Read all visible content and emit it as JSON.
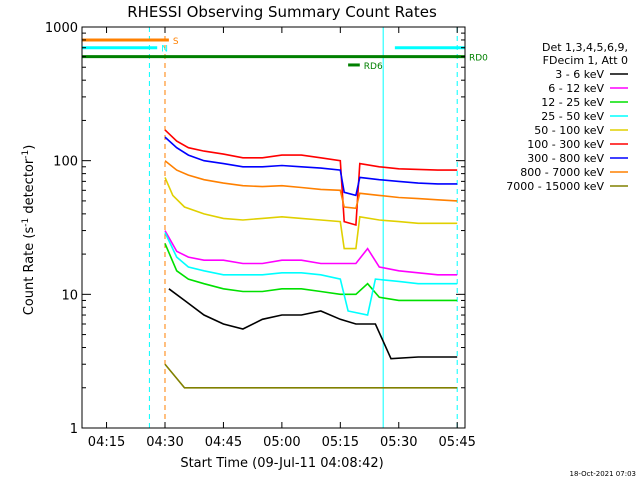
{
  "chart_data": {
    "type": "line",
    "title": "RHESSI Observing Summary Count Rates",
    "xlabel": "Start Time (09-Jul-11 04:08:42)",
    "ylabel_main": "Count Rate (s",
    "ylabel_sup1": "-1",
    "ylabel_mid": " detector",
    "ylabel_sup2": "-1",
    "ylabel_end": ")",
    "ylabel_text": "Count Rate (s-1 detector-1)",
    "yscale": "log",
    "ylim": [
      1,
      1000
    ],
    "xlim": [
      "04:08:42",
      "05:47:00"
    ],
    "x_ticks": [
      "04:15",
      "04:30",
      "04:45",
      "05:00",
      "05:15",
      "05:30",
      "05:45"
    ],
    "y_ticks": [
      "1",
      "10",
      "100",
      "1000"
    ],
    "legend_header": [
      "Det 1,3,4,5,6,9,",
      "FDecim 1, Att 0"
    ],
    "legend_position": "right",
    "timestamp": "18-Oct-2021 07:03",
    "series": [
      {
        "name": "3 - 6 keV",
        "color": "#000000",
        "pts": [
          [
            "04:31",
            11
          ],
          [
            "04:35",
            9
          ],
          [
            "04:40",
            7
          ],
          [
            "04:45",
            6
          ],
          [
            "04:50",
            5.5
          ],
          [
            "04:55",
            6.5
          ],
          [
            "05:00",
            7
          ],
          [
            "05:05",
            7
          ],
          [
            "05:10",
            7.5
          ],
          [
            "05:15",
            6.5
          ],
          [
            "05:19",
            6
          ],
          [
            "05:24",
            6
          ],
          [
            "05:28",
            3.3
          ],
          [
            "05:35",
            3.4
          ],
          [
            "05:40",
            3.4
          ],
          [
            "05:45",
            3.4
          ]
        ]
      },
      {
        "name": "6 - 12 keV",
        "color": "#ff00ff",
        "pts": [
          [
            "04:30",
            30
          ],
          [
            "04:33",
            21
          ],
          [
            "04:36",
            19
          ],
          [
            "04:40",
            18
          ],
          [
            "04:45",
            18
          ],
          [
            "04:50",
            17
          ],
          [
            "04:55",
            17
          ],
          [
            "05:00",
            18
          ],
          [
            "05:05",
            18
          ],
          [
            "05:10",
            17
          ],
          [
            "05:15",
            17
          ],
          [
            "05:19",
            17
          ],
          [
            "05:22",
            22
          ],
          [
            "05:25",
            16
          ],
          [
            "05:30",
            15
          ],
          [
            "05:35",
            14.5
          ],
          [
            "05:40",
            14
          ],
          [
            "05:45",
            14
          ]
        ]
      },
      {
        "name": "12 - 25 keV",
        "color": "#00e000",
        "pts": [
          [
            "04:30",
            24
          ],
          [
            "04:33",
            15
          ],
          [
            "04:36",
            13
          ],
          [
            "04:40",
            12
          ],
          [
            "04:45",
            11
          ],
          [
            "04:50",
            10.5
          ],
          [
            "04:55",
            10.5
          ],
          [
            "05:00",
            11
          ],
          [
            "05:05",
            11
          ],
          [
            "05:10",
            10.5
          ],
          [
            "05:15",
            10
          ],
          [
            "05:19",
            10
          ],
          [
            "05:22",
            12
          ],
          [
            "05:25",
            9.5
          ],
          [
            "05:30",
            9
          ],
          [
            "05:35",
            9
          ],
          [
            "05:40",
            9
          ],
          [
            "05:45",
            9
          ]
        ]
      },
      {
        "name": "25 - 50 keV",
        "color": "#00ffff",
        "pts": [
          [
            "04:30",
            29
          ],
          [
            "04:33",
            19
          ],
          [
            "04:36",
            16
          ],
          [
            "04:40",
            15
          ],
          [
            "04:45",
            14
          ],
          [
            "04:50",
            14
          ],
          [
            "04:55",
            14
          ],
          [
            "05:00",
            14.5
          ],
          [
            "05:05",
            14.5
          ],
          [
            "05:10",
            14
          ],
          [
            "05:15",
            13
          ],
          [
            "05:17",
            7.5
          ],
          [
            "05:22",
            7
          ],
          [
            "05:24",
            13
          ],
          [
            "05:30",
            12.5
          ],
          [
            "05:35",
            12
          ],
          [
            "05:40",
            12
          ],
          [
            "05:45",
            12
          ]
        ]
      },
      {
        "name": "50 - 100 keV",
        "color": "#e0d000",
        "pts": [
          [
            "04:30",
            75
          ],
          [
            "04:32",
            55
          ],
          [
            "04:35",
            45
          ],
          [
            "04:40",
            40
          ],
          [
            "04:45",
            37
          ],
          [
            "04:50",
            36
          ],
          [
            "04:55",
            37
          ],
          [
            "05:00",
            38
          ],
          [
            "05:05",
            37
          ],
          [
            "05:10",
            36
          ],
          [
            "05:15",
            35
          ],
          [
            "05:16",
            22
          ],
          [
            "05:19",
            22
          ],
          [
            "05:20",
            38
          ],
          [
            "05:25",
            36
          ],
          [
            "05:30",
            35
          ],
          [
            "05:35",
            34
          ],
          [
            "05:40",
            34
          ],
          [
            "05:45",
            34
          ]
        ]
      },
      {
        "name": "100 - 300 keV",
        "color": "#ff0000",
        "pts": [
          [
            "04:30",
            170
          ],
          [
            "04:33",
            140
          ],
          [
            "04:36",
            125
          ],
          [
            "04:40",
            118
          ],
          [
            "04:45",
            112
          ],
          [
            "04:50",
            105
          ],
          [
            "04:55",
            105
          ],
          [
            "05:00",
            110
          ],
          [
            "05:05",
            110
          ],
          [
            "05:10",
            105
          ],
          [
            "05:15",
            100
          ],
          [
            "05:16",
            35
          ],
          [
            "05:19",
            33
          ],
          [
            "05:20",
            95
          ],
          [
            "05:25",
            90
          ],
          [
            "05:30",
            87
          ],
          [
            "05:35",
            86
          ],
          [
            "05:40",
            85
          ],
          [
            "05:45",
            85
          ]
        ]
      },
      {
        "name": "300 - 800 keV",
        "color": "#0000ff",
        "pts": [
          [
            "04:30",
            150
          ],
          [
            "04:33",
            125
          ],
          [
            "04:36",
            110
          ],
          [
            "04:40",
            100
          ],
          [
            "04:45",
            95
          ],
          [
            "04:50",
            90
          ],
          [
            "04:55",
            90
          ],
          [
            "05:00",
            92
          ],
          [
            "05:05",
            90
          ],
          [
            "05:10",
            88
          ],
          [
            "05:15",
            85
          ],
          [
            "05:16",
            58
          ],
          [
            "05:19",
            55
          ],
          [
            "05:20",
            75
          ],
          [
            "05:25",
            72
          ],
          [
            "05:30",
            70
          ],
          [
            "05:35",
            68
          ],
          [
            "05:40",
            67
          ],
          [
            "05:45",
            67
          ]
        ]
      },
      {
        "name": "800 - 7000 keV",
        "color": "#ff8000",
        "pts": [
          [
            "04:30",
            100
          ],
          [
            "04:33",
            85
          ],
          [
            "04:36",
            78
          ],
          [
            "04:40",
            72
          ],
          [
            "04:45",
            68
          ],
          [
            "04:50",
            65
          ],
          [
            "04:55",
            64
          ],
          [
            "05:00",
            65
          ],
          [
            "05:05",
            63
          ],
          [
            "05:10",
            61
          ],
          [
            "05:15",
            60
          ],
          [
            "05:16",
            45
          ],
          [
            "05:19",
            44
          ],
          [
            "05:20",
            57
          ],
          [
            "05:25",
            55
          ],
          [
            "05:30",
            53
          ],
          [
            "05:35",
            52
          ],
          [
            "05:40",
            51
          ],
          [
            "05:45",
            50
          ]
        ]
      },
      {
        "name": "7000 - 15000 keV",
        "color": "#808000",
        "pts": [
          [
            "04:30",
            3
          ],
          [
            "04:35",
            2
          ],
          [
            "04:40",
            2
          ],
          [
            "04:45",
            2
          ],
          [
            "04:50",
            2
          ],
          [
            "04:55",
            2
          ],
          [
            "05:00",
            2
          ],
          [
            "05:05",
            2
          ],
          [
            "05:10",
            2
          ],
          [
            "05:15",
            2
          ],
          [
            "05:20",
            2
          ],
          [
            "05:25",
            2
          ],
          [
            "05:30",
            2
          ],
          [
            "05:35",
            2
          ],
          [
            "05:40",
            2
          ],
          [
            "05:45",
            2
          ]
        ]
      }
    ],
    "flags": [
      {
        "label": "S",
        "color": "#ff8000",
        "y": 800,
        "start": "04:08:42",
        "end": "04:31:00"
      },
      {
        "label": "N",
        "color": "#00ffff",
        "y": 700,
        "start": "04:08:42",
        "end": "04:28:00"
      },
      {
        "label": "",
        "color": "#00ffff",
        "y": 700,
        "start": "05:29:00",
        "end": "05:47:00"
      },
      {
        "label": "RD0",
        "color": "#008000",
        "y": 600,
        "start": "04:08:42",
        "end": "05:47:00"
      },
      {
        "label": "RD6",
        "color": "#008000",
        "y": 520,
        "start": "05:17:00",
        "end": "05:20:00"
      }
    ],
    "vlines": [
      {
        "t": "04:08:42",
        "color": "#00ffff",
        "style": "solid"
      },
      {
        "t": "04:26:00",
        "color": "#00ffff",
        "style": "dashed"
      },
      {
        "t": "04:30:00",
        "color": "#ff8000",
        "style": "dashed"
      },
      {
        "t": "05:26:00",
        "color": "#00ffff",
        "style": "solid"
      },
      {
        "t": "05:45:00",
        "color": "#00ffff",
        "style": "dashed"
      }
    ]
  }
}
